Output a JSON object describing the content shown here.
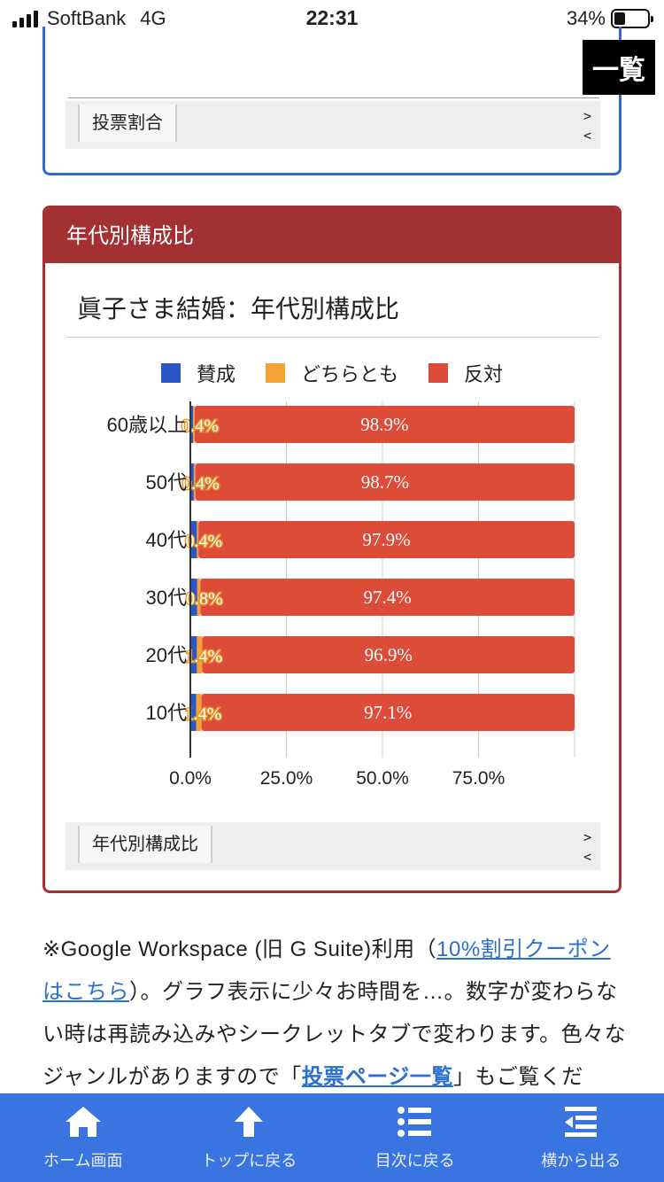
{
  "status_bar": {
    "carrier": "SoftBank",
    "network": "4G",
    "time": "22:31",
    "battery": "34%"
  },
  "top_section": {
    "ichiran_label": "一覧",
    "tab_label": "投票割合",
    "next_arrow": ">",
    "prev_arrow": "<"
  },
  "age_section": {
    "header": "年代別構成比",
    "tab_label": "年代別構成比",
    "next_arrow": ">",
    "prev_arrow": "<"
  },
  "chart_data": {
    "type": "bar",
    "orientation": "horizontal-stacked",
    "title": "眞子さま結婚：年代別構成比",
    "categories": [
      "60歳以上",
      "50代",
      "40代",
      "30代",
      "20代",
      "10代"
    ],
    "series": [
      {
        "name": "賛成",
        "color": "#2a56c6",
        "values": [
          0.7,
          0.9,
          1.7,
          1.8,
          1.7,
          1.5
        ]
      },
      {
        "name": "どちらとも",
        "color": "#f4a235",
        "values": [
          0.4,
          0.4,
          0.4,
          0.8,
          1.4,
          1.4
        ],
        "labels": [
          "0.4%",
          "0.4%",
          "0.4%",
          "0.8%",
          "1.4%",
          "1.4%"
        ]
      },
      {
        "name": "反対",
        "color": "#dd4b39",
        "values": [
          98.9,
          98.7,
          97.9,
          97.4,
          96.9,
          97.1
        ],
        "labels": [
          "98.9%",
          "98.7%",
          "97.9%",
          "97.4%",
          "96.9%",
          "97.1%"
        ]
      }
    ],
    "x_ticks": [
      "0.0%",
      "25.0%",
      "50.0%",
      "75.0%"
    ],
    "xlim": [
      0,
      100
    ],
    "legend": "top",
    "grid": true
  },
  "paragraph": {
    "t1": "※Google Workspace (旧 G Suite)利用（",
    "link1": "10%割引クーポンはこちら",
    "t2": "）。グラフ表示に少々お時間を…。数字が変わらない時は再読み込みやシークレットタブで変わります。色々なジャンルがありますので「",
    "link2": "投票ページ一覧",
    "t3": "」もご覧くだ"
  },
  "bottom_nav": [
    {
      "label": "ホーム画面",
      "icon": "home-icon"
    },
    {
      "label": "トップに戻る",
      "icon": "arrow-up-icon"
    },
    {
      "label": "目次に戻る",
      "icon": "list-icon"
    },
    {
      "label": "横から出る",
      "icon": "side-menu-icon"
    }
  ]
}
